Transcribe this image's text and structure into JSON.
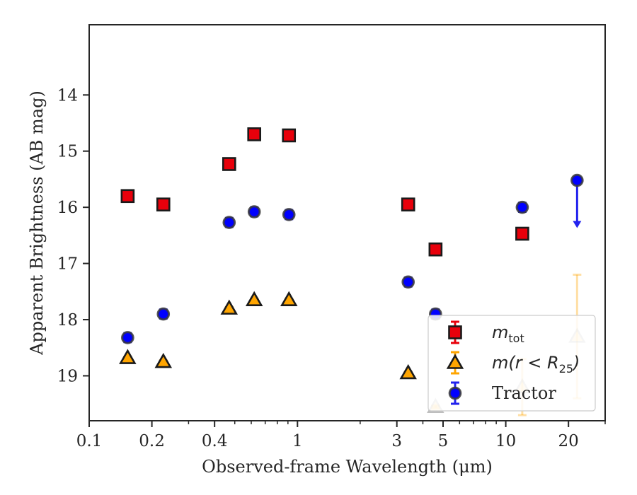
{
  "chart_data": {
    "type": "scatter",
    "xlabel": "Observed-frame Wavelength (μm)",
    "ylabel": "Apparent Brightness (AB mag)",
    "x_scale": "log",
    "xlim": [
      0.1,
      30
    ],
    "ylim": [
      19.8,
      12.75
    ],
    "y_inverted": true,
    "x_ticks": [
      {
        "value": 0.1,
        "label": "0.1"
      },
      {
        "value": 0.2,
        "label": "0.2"
      },
      {
        "value": 0.4,
        "label": "0.4"
      },
      {
        "value": 1,
        "label": "1"
      },
      {
        "value": 3,
        "label": "3"
      },
      {
        "value": 5,
        "label": "5"
      },
      {
        "value": 10,
        "label": "10"
      },
      {
        "value": 20,
        "label": "20"
      }
    ],
    "y_ticks": [
      {
        "value": 14,
        "label": "14"
      },
      {
        "value": 15,
        "label": "15"
      },
      {
        "value": 16,
        "label": "16"
      },
      {
        "value": 17,
        "label": "17"
      },
      {
        "value": 18,
        "label": "18"
      },
      {
        "value": 19,
        "label": "19"
      }
    ],
    "legend_position": "lower-right",
    "grid": false,
    "series": [
      {
        "name": "m_tot",
        "legend_label": "m",
        "legend_sub": "tot",
        "marker": "square",
        "color": "#e8000b",
        "errcolor": "#e8000b",
        "points": [
          {
            "x": 0.153,
            "y": 15.8,
            "err": 0.05
          },
          {
            "x": 0.227,
            "y": 15.95,
            "err": 0.05
          },
          {
            "x": 0.47,
            "y": 15.23,
            "err": 0.05
          },
          {
            "x": 0.62,
            "y": 14.7,
            "err": 0.05
          },
          {
            "x": 0.91,
            "y": 14.72,
            "err": 0.05
          },
          {
            "x": 3.4,
            "y": 15.95,
            "err": 0.05
          },
          {
            "x": 4.6,
            "y": 16.75,
            "err": 0.05
          },
          {
            "x": 12.0,
            "y": 16.47,
            "err": 0.05
          }
        ]
      },
      {
        "name": "m(r < R25)",
        "legend_label": "m(r < R",
        "legend_sub": "25",
        "legend_tail": ")",
        "marker": "triangle",
        "color": "#ffa500",
        "errcolor": "#ffa500",
        "points": [
          {
            "x": 0.153,
            "y": 18.68,
            "err": 0.02
          },
          {
            "x": 0.227,
            "y": 18.75,
            "err": 0.02
          },
          {
            "x": 0.47,
            "y": 17.8,
            "err": 0.02
          },
          {
            "x": 0.62,
            "y": 17.65,
            "err": 0.02
          },
          {
            "x": 0.91,
            "y": 17.65,
            "err": 0.02
          },
          {
            "x": 3.4,
            "y": 18.95,
            "err": 0.02
          },
          {
            "x": 4.6,
            "y": 19.55,
            "err": 0.02,
            "faded": true
          },
          {
            "x": 12.0,
            "y": 19.2,
            "err": 0.5,
            "faded": true
          },
          {
            "x": 22.0,
            "y": 18.3,
            "err": 1.1,
            "faded": true
          }
        ]
      },
      {
        "name": "Tractor",
        "legend_label": "Tractor",
        "marker": "circle",
        "color": "#0000ff",
        "errcolor": "#2222ee",
        "points": [
          {
            "x": 0.153,
            "y": 18.32,
            "err": 0.08
          },
          {
            "x": 0.227,
            "y": 17.9,
            "err": 0.08
          },
          {
            "x": 0.47,
            "y": 16.27,
            "err": 0.08
          },
          {
            "x": 0.62,
            "y": 16.08,
            "err": 0.08
          },
          {
            "x": 0.91,
            "y": 16.13,
            "err": 0.08
          },
          {
            "x": 3.4,
            "y": 17.33,
            "err": 0.08
          },
          {
            "x": 4.6,
            "y": 17.9,
            "err": 0.08
          },
          {
            "x": 12.0,
            "y": 16.0,
            "err": 0.08
          },
          {
            "x": 22.0,
            "y": 15.52,
            "upper_limit": true,
            "limit_to": 16.37
          }
        ]
      }
    ]
  }
}
